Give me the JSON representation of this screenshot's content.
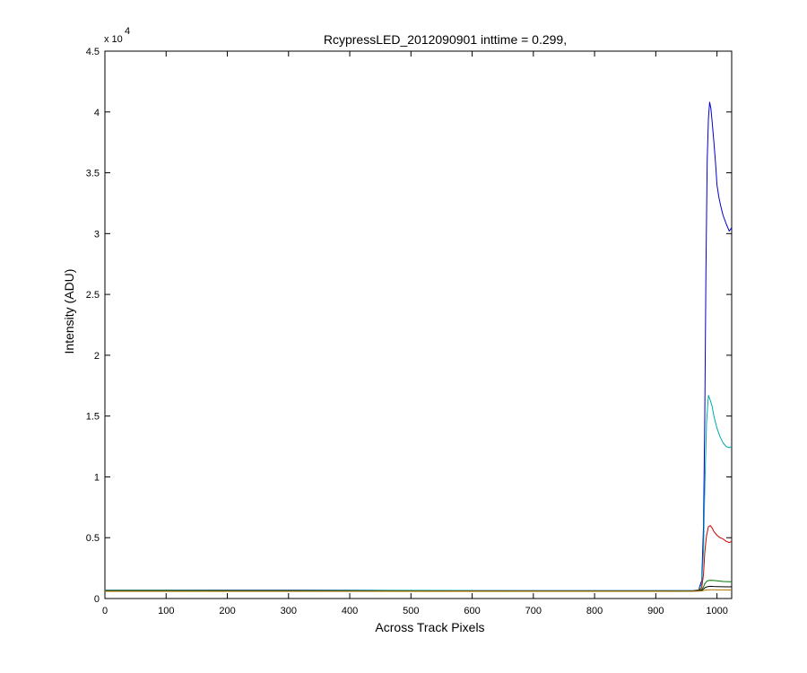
{
  "chart_data": {
    "type": "line",
    "title": "RcypressLED_2012090901 inttime = 0.299,",
    "xlabel": "Across Track Pixels",
    "ylabel": "Intensity (ADU)",
    "xlim": [
      0,
      1024
    ],
    "ylim": [
      0,
      45000
    ],
    "y_exponent_base": "x 10",
    "y_exponent_power": "4",
    "x_ticks": [
      0,
      100,
      200,
      300,
      400,
      500,
      600,
      700,
      800,
      900,
      1000
    ],
    "x_tick_labels": [
      "0",
      "100",
      "200",
      "300",
      "400",
      "500",
      "600",
      "700",
      "800",
      "900",
      "1000"
    ],
    "y_ticks": [
      0,
      5000,
      10000,
      15000,
      20000,
      25000,
      30000,
      35000,
      40000,
      45000
    ],
    "y_tick_labels": [
      "0",
      "0.5",
      "1",
      "1.5",
      "2",
      "2.5",
      "3",
      "3.5",
      "4",
      "4.5"
    ],
    "grid": false,
    "legend": "none",
    "series": [
      {
        "color": "#0000cc",
        "x": [
          0,
          100,
          200,
          300,
          400,
          500,
          600,
          700,
          800,
          900,
          960,
          970,
          975,
          978,
          980,
          982,
          984,
          986,
          988,
          990,
          992,
          995,
          998,
          1000,
          1003,
          1006,
          1010,
          1015,
          1020,
          1024
        ],
        "y": [
          700,
          700,
          700,
          700,
          680,
          660,
          650,
          640,
          640,
          640,
          650,
          700,
          1500,
          6000,
          15000,
          27000,
          36000,
          39500,
          40800,
          40300,
          39200,
          37500,
          35500,
          34000,
          33000,
          32300,
          31500,
          30800,
          30200,
          30500
        ]
      },
      {
        "color": "#00aaaa",
        "x": [
          0,
          100,
          200,
          300,
          400,
          500,
          600,
          700,
          800,
          900,
          960,
          970,
          975,
          978,
          980,
          983,
          986,
          989,
          992,
          995,
          1000,
          1005,
          1010,
          1015,
          1020,
          1024
        ],
        "y": [
          700,
          700,
          690,
          690,
          680,
          670,
          660,
          650,
          640,
          640,
          650,
          700,
          1200,
          4000,
          9000,
          14500,
          16700,
          16300,
          15800,
          15000,
          14000,
          13300,
          12800,
          12500,
          12400,
          12500
        ]
      },
      {
        "color": "#cc0000",
        "x": [
          0,
          100,
          300,
          500,
          700,
          900,
          960,
          970,
          975,
          978,
          980,
          983,
          986,
          989,
          992,
          995,
          1000,
          1005,
          1010,
          1015,
          1020,
          1024
        ],
        "y": [
          650,
          650,
          640,
          630,
          620,
          620,
          630,
          680,
          900,
          2000,
          3800,
          5200,
          5900,
          6000,
          5800,
          5500,
          5200,
          5000,
          4900,
          4700,
          4600,
          4700
        ]
      },
      {
        "color": "#007700",
        "x": [
          0,
          300,
          600,
          900,
          960,
          970,
          975,
          978,
          980,
          983,
          986,
          990,
          995,
          1000,
          1010,
          1020,
          1024
        ],
        "y": [
          620,
          620,
          610,
          610,
          620,
          650,
          750,
          950,
          1200,
          1400,
          1480,
          1500,
          1480,
          1450,
          1400,
          1380,
          1390
        ]
      },
      {
        "color": "#000000",
        "x": [
          0,
          300,
          600,
          900,
          960,
          970,
          975,
          978,
          980,
          983,
          986,
          990,
          995,
          1000,
          1010,
          1020,
          1024
        ],
        "y": [
          600,
          600,
          600,
          600,
          610,
          630,
          680,
          780,
          880,
          950,
          990,
          1000,
          990,
          980,
          970,
          960,
          965
        ]
      },
      {
        "color": "#aa7700",
        "x": [
          0,
          300,
          600,
          900,
          960,
          970,
          975,
          978,
          980,
          983,
          986,
          990,
          995,
          1000,
          1010,
          1020,
          1024
        ],
        "y": [
          590,
          590,
          590,
          590,
          600,
          610,
          630,
          660,
          680,
          700,
          710,
          715,
          712,
          710,
          705,
          700,
          702
        ]
      }
    ]
  }
}
